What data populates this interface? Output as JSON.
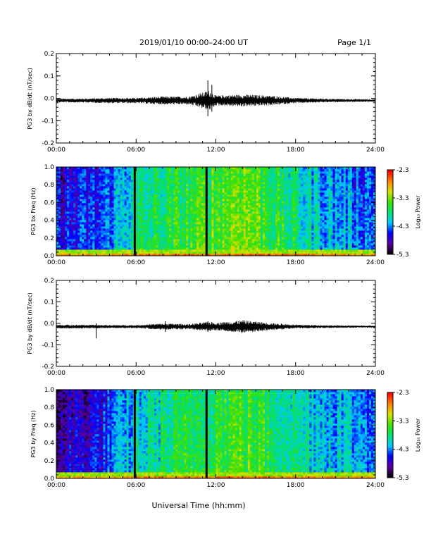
{
  "header": {
    "title": "2019/01/10   00:00–24:00 UT",
    "page": "Page 1/1"
  },
  "footer": {
    "xlabel": "Universal Time (hh:mm)"
  },
  "time_ticks": [
    "00:00",
    "06:00",
    "12:00",
    "18:00",
    "24:00"
  ],
  "colorbar": {
    "label": "Log₁₀ Power",
    "ticks": [
      "-2.3",
      "-3.3",
      "-4.3",
      "-5.3"
    ],
    "range": [
      -5.3,
      -2.3
    ],
    "colormap": "rainbow",
    "colors": [
      "#000000",
      "#5a00a0",
      "#0000ff",
      "#00c8ff",
      "#00e070",
      "#40e000",
      "#d8e000",
      "#ff8000",
      "#ff0000"
    ]
  },
  "chart_data": [
    {
      "type": "line",
      "panel": "bx-waveform",
      "ylabel": "PG3 bx dB/dt (nT/sec)",
      "xlim": [
        0,
        24
      ],
      "ylim": [
        -0.2,
        0.2
      ],
      "ytick_labels": [
        "0.2",
        "0.1",
        "0.0",
        "-0.1",
        "-0.2"
      ],
      "yticks": [
        0.2,
        0.1,
        0.0,
        -0.1,
        -0.2
      ],
      "baseline": -0.01,
      "amplitude_envelope": [
        {
          "x": 0,
          "amp": 0.006
        },
        {
          "x": 2,
          "amp": 0.006
        },
        {
          "x": 4,
          "amp": 0.008
        },
        {
          "x": 6,
          "amp": 0.008
        },
        {
          "x": 8,
          "amp": 0.012
        },
        {
          "x": 10,
          "amp": 0.012
        },
        {
          "x": 11.5,
          "amp": 0.03
        },
        {
          "x": 12,
          "amp": 0.015
        },
        {
          "x": 14,
          "amp": 0.018
        },
        {
          "x": 16,
          "amp": 0.015
        },
        {
          "x": 18,
          "amp": 0.008
        },
        {
          "x": 21,
          "amp": 0.005
        },
        {
          "x": 24,
          "amp": 0.004
        }
      ],
      "spikes": [
        {
          "x": 11.4,
          "max": 0.08,
          "min": -0.08
        },
        {
          "x": 11.7,
          "max": 0.06,
          "min": -0.06
        }
      ]
    },
    {
      "type": "heatmap",
      "panel": "bx-spectrogram",
      "ylabel": "PG3 bx Freq (Hz)",
      "xlim": [
        0,
        24
      ],
      "ylim": [
        0.0,
        1.0
      ],
      "ytick_labels": [
        "1.0",
        "0.8",
        "0.6",
        "0.4",
        "0.2",
        "0.0"
      ],
      "yticks": [
        1.0,
        0.8,
        0.6,
        0.4,
        0.2,
        0.0
      ],
      "zlim": [
        -5.3,
        -2.3
      ],
      "gap_times": [
        5.9,
        11.3
      ],
      "activity_profile": [
        {
          "x": 0,
          "level": -4.6
        },
        {
          "x": 3,
          "level": -4.5
        },
        {
          "x": 6,
          "level": -3.8
        },
        {
          "x": 9,
          "level": -3.6
        },
        {
          "x": 12,
          "level": -3.4
        },
        {
          "x": 14,
          "level": -3.2
        },
        {
          "x": 16,
          "level": -3.5
        },
        {
          "x": 18,
          "level": -3.8
        },
        {
          "x": 20,
          "level": -4.1
        },
        {
          "x": 22,
          "level": -4.2
        },
        {
          "x": 24,
          "level": -4.3
        }
      ]
    },
    {
      "type": "line",
      "panel": "by-waveform",
      "ylabel": "PG3 by dB/dt (nT/sec)",
      "xlim": [
        0,
        24
      ],
      "ylim": [
        -0.2,
        0.2
      ],
      "ytick_labels": [
        "0.2",
        "0.1",
        "0.0",
        "-0.1",
        "-0.2"
      ],
      "yticks": [
        0.2,
        0.1,
        0.0,
        -0.1,
        -0.2
      ],
      "baseline": -0.015,
      "amplitude_envelope": [
        {
          "x": 0,
          "amp": 0.006
        },
        {
          "x": 2,
          "amp": 0.006
        },
        {
          "x": 4,
          "amp": 0.005
        },
        {
          "x": 6,
          "amp": 0.005
        },
        {
          "x": 8,
          "amp": 0.01
        },
        {
          "x": 10,
          "amp": 0.008
        },
        {
          "x": 11.5,
          "amp": 0.015
        },
        {
          "x": 12,
          "amp": 0.012
        },
        {
          "x": 14,
          "amp": 0.02
        },
        {
          "x": 16,
          "amp": 0.012
        },
        {
          "x": 18,
          "amp": 0.006
        },
        {
          "x": 21,
          "amp": 0.004
        },
        {
          "x": 24,
          "amp": 0.003
        }
      ],
      "spikes": [
        {
          "x": 3.0,
          "max": 0.0,
          "min": -0.07
        },
        {
          "x": 8.2,
          "max": 0.01,
          "min": -0.04
        },
        {
          "x": 11.4,
          "max": 0.01,
          "min": -0.04
        }
      ]
    },
    {
      "type": "heatmap",
      "panel": "by-spectrogram",
      "ylabel": "PG3 by Freq (Hz)",
      "xlim": [
        0,
        24
      ],
      "ylim": [
        0.0,
        1.0
      ],
      "ytick_labels": [
        "1.0",
        "0.8",
        "0.6",
        "0.4",
        "0.2",
        "0.0"
      ],
      "yticks": [
        1.0,
        0.8,
        0.6,
        0.4,
        0.2,
        0.0
      ],
      "zlim": [
        -5.3,
        -2.3
      ],
      "gap_times": [
        5.9,
        11.3
      ],
      "activity_profile": [
        {
          "x": 0,
          "level": -4.8
        },
        {
          "x": 3,
          "level": -4.6
        },
        {
          "x": 6,
          "level": -4.0
        },
        {
          "x": 9,
          "level": -3.7
        },
        {
          "x": 12,
          "level": -3.5
        },
        {
          "x": 14,
          "level": -3.4
        },
        {
          "x": 16,
          "level": -3.6
        },
        {
          "x": 18,
          "level": -3.8
        },
        {
          "x": 20,
          "level": -4.0
        },
        {
          "x": 22,
          "level": -4.1
        },
        {
          "x": 24,
          "level": -4.2
        }
      ]
    }
  ]
}
